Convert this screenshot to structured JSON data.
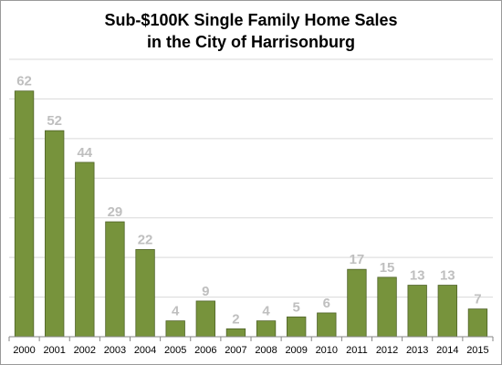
{
  "chart_data": {
    "type": "bar",
    "title": "Sub-$100K Single Family Home Sales",
    "subtitle": "in the City of Harrisonburg",
    "categories": [
      "2000",
      "2001",
      "2002",
      "2003",
      "2004",
      "2005",
      "2006",
      "2007",
      "2008",
      "2009",
      "2010",
      "2011",
      "2012",
      "2013",
      "2014",
      "2015"
    ],
    "values": [
      62,
      52,
      44,
      29,
      22,
      4,
      9,
      2,
      4,
      5,
      6,
      17,
      15,
      13,
      13,
      7
    ],
    "ylim": [
      0,
      70
    ],
    "grid": true,
    "legend": "none",
    "bar_color": "#77933c",
    "bar_border_color": "#4f6228",
    "data_label_color": "#bfbfbf",
    "grid_color": "#d9d9d9"
  }
}
